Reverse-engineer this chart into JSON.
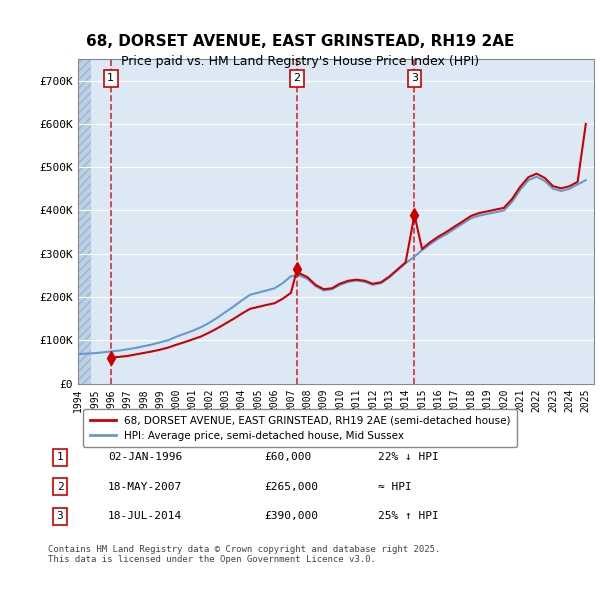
{
  "title_line1": "68, DORSET AVENUE, EAST GRINSTEAD, RH19 2AE",
  "title_line2": "Price paid vs. HM Land Registry's House Price Index (HPI)",
  "ylabel": "",
  "xlabel": "",
  "ylim": [
    0,
    750000
  ],
  "yticks": [
    0,
    100000,
    200000,
    300000,
    400000,
    500000,
    600000,
    700000
  ],
  "ytick_labels": [
    "£0",
    "£100K",
    "£200K",
    "£300K",
    "£400K",
    "£500K",
    "£600K",
    "£700K"
  ],
  "xlim_start": 1994.0,
  "xlim_end": 2025.5,
  "bg_color": "#dce9f5",
  "hatch_color": "#b0c8e0",
  "grid_color": "#ffffff",
  "sale_color": "#cc0000",
  "hpi_color": "#6699cc",
  "sale_dates": [
    1996.003,
    2007.38,
    2014.54
  ],
  "sale_prices": [
    60000,
    265000,
    390000
  ],
  "sale_labels": [
    "1",
    "2",
    "3"
  ],
  "vline_color": "#cc0000",
  "legend_sale_label": "68, DORSET AVENUE, EAST GRINSTEAD, RH19 2AE (semi-detached house)",
  "legend_hpi_label": "HPI: Average price, semi-detached house, Mid Sussex",
  "table_rows": [
    {
      "num": "1",
      "date": "02-JAN-1996",
      "price": "£60,000",
      "vs_hpi": "22% ↓ HPI"
    },
    {
      "num": "2",
      "date": "18-MAY-2007",
      "price": "£265,000",
      "vs_hpi": "≈ HPI"
    },
    {
      "num": "3",
      "date": "18-JUL-2014",
      "price": "£390,000",
      "vs_hpi": "25% ↑ HPI"
    }
  ],
  "footnote": "Contains HM Land Registry data © Crown copyright and database right 2025.\nThis data is licensed under the Open Government Licence v3.0.",
  "hpi_years": [
    1994,
    1994.5,
    1995,
    1995.5,
    1996,
    1996.5,
    1997,
    1997.5,
    1998,
    1998.5,
    1999,
    1999.5,
    2000,
    2000.5,
    2001,
    2001.5,
    2002,
    2002.5,
    2003,
    2003.5,
    2004,
    2004.5,
    2005,
    2005.5,
    2006,
    2006.5,
    2007,
    2007.5,
    2008,
    2008.5,
    2009,
    2009.5,
    2010,
    2010.5,
    2011,
    2011.5,
    2012,
    2012.5,
    2013,
    2013.5,
    2014,
    2014.5,
    2015,
    2015.5,
    2016,
    2016.5,
    2017,
    2017.5,
    2018,
    2018.5,
    2019,
    2019.5,
    2020,
    2020.5,
    2021,
    2021.5,
    2022,
    2022.5,
    2023,
    2023.5,
    2024,
    2024.5,
    2025
  ],
  "hpi_values": [
    68000,
    69000,
    70000,
    72000,
    74000,
    76000,
    79000,
    82000,
    86000,
    90000,
    95000,
    100000,
    108000,
    115000,
    122000,
    130000,
    140000,
    152000,
    165000,
    178000,
    192000,
    205000,
    210000,
    215000,
    220000,
    232000,
    248000,
    250000,
    242000,
    225000,
    215000,
    218000,
    228000,
    235000,
    238000,
    235000,
    228000,
    232000,
    245000,
    262000,
    278000,
    292000,
    308000,
    322000,
    335000,
    345000,
    358000,
    370000,
    382000,
    388000,
    392000,
    396000,
    400000,
    420000,
    448000,
    470000,
    478000,
    468000,
    450000,
    445000,
    450000,
    460000,
    470000
  ],
  "sale_curve_years": [
    1994,
    1994.5,
    1995,
    1995.5,
    1996.003,
    1996.5,
    1997,
    1997.5,
    1998,
    1998.5,
    1999,
    1999.5,
    2000,
    2000.5,
    2001,
    2001.5,
    2002,
    2002.5,
    2003,
    2003.5,
    2004,
    2004.5,
    2005,
    2005.5,
    2006,
    2006.5,
    2007,
    2007.38,
    2007.5,
    2008,
    2008.5,
    2009,
    2009.5,
    2010,
    2010.5,
    2011,
    2011.5,
    2012,
    2012.5,
    2013,
    2013.5,
    2014,
    2014.54,
    2015,
    2015.5,
    2016,
    2016.5,
    2017,
    2017.5,
    2018,
    2018.5,
    2019,
    2019.5,
    2020,
    2020.5,
    2021,
    2021.5,
    2022,
    2022.5,
    2023,
    2023.5,
    2024,
    2024.5,
    2025
  ],
  "sale_curve_values": [
    null,
    null,
    null,
    null,
    60000,
    61500,
    63500,
    67000,
    70500,
    74000,
    78000,
    83000,
    89500,
    95500,
    102000,
    108500,
    117500,
    127500,
    138500,
    149500,
    161500,
    172500,
    177000,
    181500,
    185500,
    196000,
    209500,
    265000,
    255000,
    246000,
    228000,
    218000,
    220000,
    231000,
    237500,
    240000,
    237500,
    230500,
    234000,
    247000,
    263500,
    280000,
    390000,
    311000,
    326500,
    339500,
    350500,
    363000,
    375000,
    387500,
    394000,
    398000,
    402000,
    406000,
    426500,
    455000,
    477000,
    485000,
    475000,
    456000,
    451000,
    456000,
    466000,
    600000
  ]
}
